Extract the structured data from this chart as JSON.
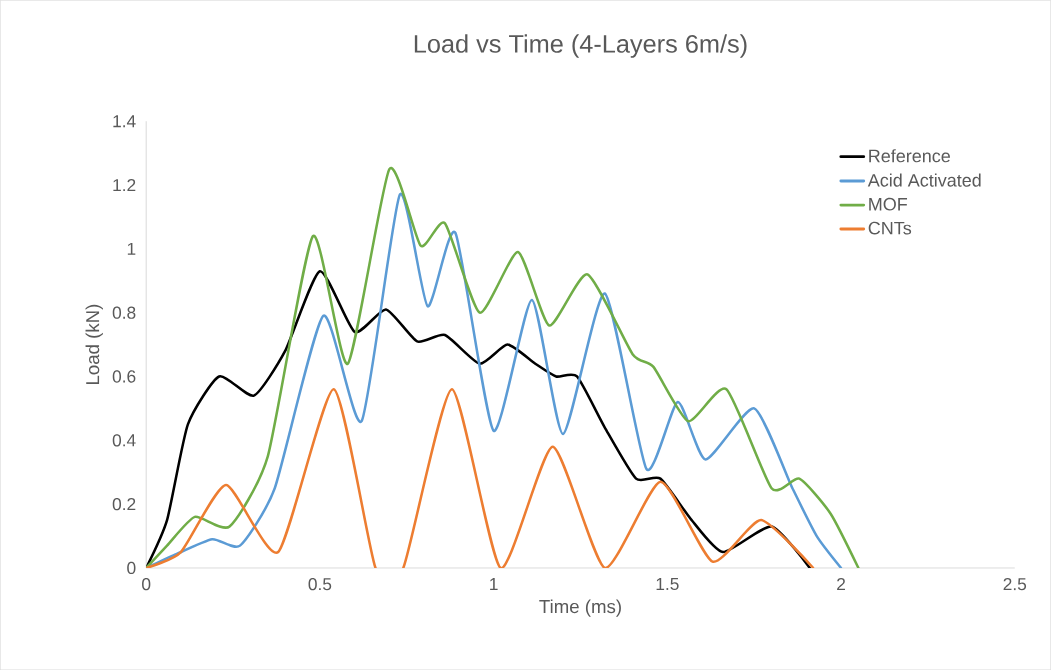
{
  "chart_data": {
    "type": "line",
    "title": "Load vs Time (4-Layers 6m/s)",
    "xlabel": "Time (ms)",
    "ylabel": "Load (kN)",
    "xlim": [
      0,
      2.5
    ],
    "ylim": [
      0,
      1.4
    ],
    "xticks": [
      0,
      0.5,
      1,
      1.5,
      2,
      2.5
    ],
    "yticks": [
      0,
      0.2,
      0.4,
      0.6,
      0.8,
      1,
      1.2,
      1.4
    ],
    "legend": "top right",
    "marker": "none",
    "line_style": "solid",
    "series": [
      {
        "name": "Reference",
        "color": "#000000",
        "x": [
          0,
          0.06,
          0.12,
          0.21,
          0.31,
          0.4,
          0.5,
          0.6,
          0.69,
          0.78,
          0.86,
          0.96,
          1.04,
          1.12,
          1.18,
          1.24,
          1.32,
          1.41,
          1.48,
          1.57,
          1.66,
          1.8,
          1.91
        ],
        "values": [
          0,
          0.15,
          0.45,
          0.6,
          0.54,
          0.68,
          0.93,
          0.74,
          0.81,
          0.71,
          0.73,
          0.64,
          0.7,
          0.64,
          0.6,
          0.6,
          0.44,
          0.28,
          0.28,
          0.15,
          0.05,
          0.13,
          0
        ]
      },
      {
        "name": "Acid Activated",
        "color": "#5b9bd5",
        "x": [
          0,
          0.08,
          0.19,
          0.27,
          0.37,
          0.51,
          0.62,
          0.73,
          0.81,
          0.89,
          1.0,
          1.11,
          1.2,
          1.32,
          1.44,
          1.53,
          1.61,
          1.75,
          1.86,
          1.93,
          2.0
        ],
        "values": [
          0,
          0.04,
          0.09,
          0.07,
          0.25,
          0.79,
          0.46,
          1.17,
          0.82,
          1.05,
          0.43,
          0.84,
          0.42,
          0.86,
          0.31,
          0.52,
          0.34,
          0.5,
          0.25,
          0.1,
          0
        ]
      },
      {
        "name": "MOF",
        "color": "#70ad47",
        "x": [
          0,
          0.06,
          0.14,
          0.24,
          0.35,
          0.48,
          0.58,
          0.7,
          0.79,
          0.86,
          0.96,
          1.07,
          1.16,
          1.27,
          1.4,
          1.46,
          1.56,
          1.67,
          1.8,
          1.88,
          1.97,
          2.05
        ],
        "values": [
          0,
          0.07,
          0.16,
          0.13,
          0.35,
          1.04,
          0.64,
          1.25,
          1.01,
          1.08,
          0.8,
          0.99,
          0.76,
          0.92,
          0.67,
          0.63,
          0.46,
          0.56,
          0.25,
          0.28,
          0.17,
          0
        ]
      },
      {
        "name": "CNTs",
        "color": "#ed7d31",
        "x": [
          0,
          0.1,
          0.23,
          0.38,
          0.54,
          0.66,
          0.74,
          0.88,
          1.02,
          1.17,
          1.32,
          1.48,
          1.63,
          1.77,
          1.92
        ],
        "values": [
          0,
          0.05,
          0.26,
          0.05,
          0.56,
          0,
          0,
          0.56,
          0,
          0.38,
          0,
          0.27,
          0.02,
          0.15,
          0
        ]
      }
    ]
  }
}
